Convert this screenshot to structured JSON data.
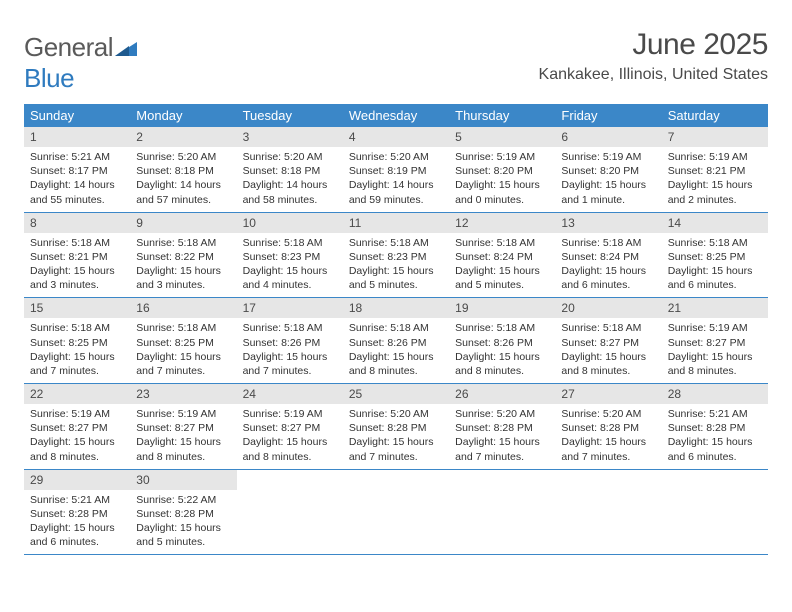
{
  "logo": {
    "text1": "General",
    "text2": "Blue"
  },
  "title": "June 2025",
  "location": "Kankakee, Illinois, United States",
  "colors": {
    "header_bg": "#3b87c8",
    "daynum_bg": "#e6e6e6",
    "border": "#3b87c8",
    "text": "#333333",
    "title_text": "#4a4a4a"
  },
  "weekdays": [
    "Sunday",
    "Monday",
    "Tuesday",
    "Wednesday",
    "Thursday",
    "Friday",
    "Saturday"
  ],
  "days": [
    {
      "n": "1",
      "sr": "5:21 AM",
      "ss": "8:17 PM",
      "dl": "14 hours and 55 minutes."
    },
    {
      "n": "2",
      "sr": "5:20 AM",
      "ss": "8:18 PM",
      "dl": "14 hours and 57 minutes."
    },
    {
      "n": "3",
      "sr": "5:20 AM",
      "ss": "8:18 PM",
      "dl": "14 hours and 58 minutes."
    },
    {
      "n": "4",
      "sr": "5:20 AM",
      "ss": "8:19 PM",
      "dl": "14 hours and 59 minutes."
    },
    {
      "n": "5",
      "sr": "5:19 AM",
      "ss": "8:20 PM",
      "dl": "15 hours and 0 minutes."
    },
    {
      "n": "6",
      "sr": "5:19 AM",
      "ss": "8:20 PM",
      "dl": "15 hours and 1 minute."
    },
    {
      "n": "7",
      "sr": "5:19 AM",
      "ss": "8:21 PM",
      "dl": "15 hours and 2 minutes."
    },
    {
      "n": "8",
      "sr": "5:18 AM",
      "ss": "8:21 PM",
      "dl": "15 hours and 3 minutes."
    },
    {
      "n": "9",
      "sr": "5:18 AM",
      "ss": "8:22 PM",
      "dl": "15 hours and 3 minutes."
    },
    {
      "n": "10",
      "sr": "5:18 AM",
      "ss": "8:23 PM",
      "dl": "15 hours and 4 minutes."
    },
    {
      "n": "11",
      "sr": "5:18 AM",
      "ss": "8:23 PM",
      "dl": "15 hours and 5 minutes."
    },
    {
      "n": "12",
      "sr": "5:18 AM",
      "ss": "8:24 PM",
      "dl": "15 hours and 5 minutes."
    },
    {
      "n": "13",
      "sr": "5:18 AM",
      "ss": "8:24 PM",
      "dl": "15 hours and 6 minutes."
    },
    {
      "n": "14",
      "sr": "5:18 AM",
      "ss": "8:25 PM",
      "dl": "15 hours and 6 minutes."
    },
    {
      "n": "15",
      "sr": "5:18 AM",
      "ss": "8:25 PM",
      "dl": "15 hours and 7 minutes."
    },
    {
      "n": "16",
      "sr": "5:18 AM",
      "ss": "8:25 PM",
      "dl": "15 hours and 7 minutes."
    },
    {
      "n": "17",
      "sr": "5:18 AM",
      "ss": "8:26 PM",
      "dl": "15 hours and 7 minutes."
    },
    {
      "n": "18",
      "sr": "5:18 AM",
      "ss": "8:26 PM",
      "dl": "15 hours and 8 minutes."
    },
    {
      "n": "19",
      "sr": "5:18 AM",
      "ss": "8:26 PM",
      "dl": "15 hours and 8 minutes."
    },
    {
      "n": "20",
      "sr": "5:18 AM",
      "ss": "8:27 PM",
      "dl": "15 hours and 8 minutes."
    },
    {
      "n": "21",
      "sr": "5:19 AM",
      "ss": "8:27 PM",
      "dl": "15 hours and 8 minutes."
    },
    {
      "n": "22",
      "sr": "5:19 AM",
      "ss": "8:27 PM",
      "dl": "15 hours and 8 minutes."
    },
    {
      "n": "23",
      "sr": "5:19 AM",
      "ss": "8:27 PM",
      "dl": "15 hours and 8 minutes."
    },
    {
      "n": "24",
      "sr": "5:19 AM",
      "ss": "8:27 PM",
      "dl": "15 hours and 8 minutes."
    },
    {
      "n": "25",
      "sr": "5:20 AM",
      "ss": "8:28 PM",
      "dl": "15 hours and 7 minutes."
    },
    {
      "n": "26",
      "sr": "5:20 AM",
      "ss": "8:28 PM",
      "dl": "15 hours and 7 minutes."
    },
    {
      "n": "27",
      "sr": "5:20 AM",
      "ss": "8:28 PM",
      "dl": "15 hours and 7 minutes."
    },
    {
      "n": "28",
      "sr": "5:21 AM",
      "ss": "8:28 PM",
      "dl": "15 hours and 6 minutes."
    },
    {
      "n": "29",
      "sr": "5:21 AM",
      "ss": "8:28 PM",
      "dl": "15 hours and 6 minutes."
    },
    {
      "n": "30",
      "sr": "5:22 AM",
      "ss": "8:28 PM",
      "dl": "15 hours and 5 minutes."
    }
  ],
  "labels": {
    "sunrise": "Sunrise: ",
    "sunset": "Sunset: ",
    "daylight": "Daylight: "
  }
}
